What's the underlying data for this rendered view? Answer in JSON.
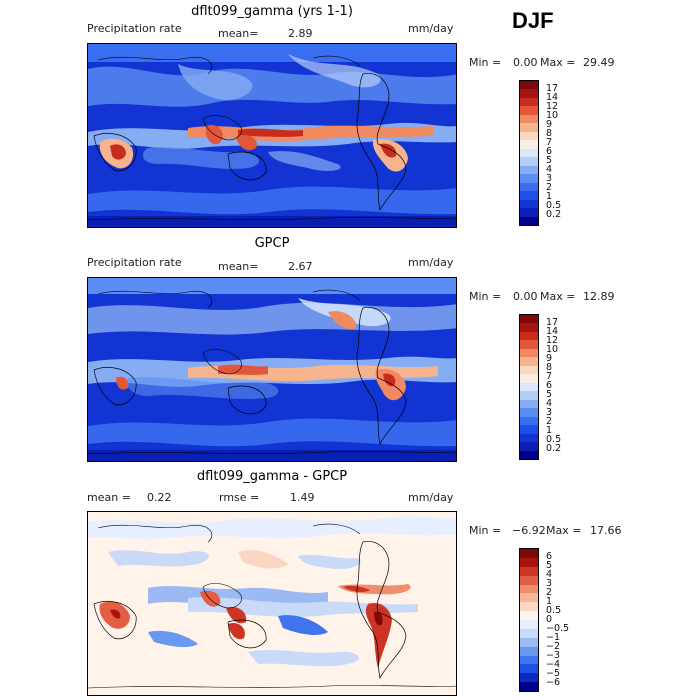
{
  "season": "DJF",
  "colors": {
    "precip_scale": [
      "#00008b",
      "#0a1fb4",
      "#1234d2",
      "#1f4fe6",
      "#3a6ef0",
      "#5b8df2",
      "#86adf3",
      "#b3cdf6",
      "#dbe8fb",
      "#f7eee6",
      "#fad7bf",
      "#f6b48e",
      "#f08a60",
      "#e2573a",
      "#c62d1e",
      "#a51410",
      "#7d0a06"
    ],
    "diff_scale": [
      "#00008b",
      "#0d2bc2",
      "#1e50e2",
      "#3f74ee",
      "#6a97f1",
      "#9bbaf4",
      "#c8daf8",
      "#e6efff",
      "#fff3ea",
      "#fbd7c3",
      "#f6b69b",
      "#ef8e6e",
      "#e35f44",
      "#cc3424",
      "#a7140e",
      "#7d0a06"
    ]
  },
  "panels": [
    {
      "title": "dflt099_gamma (yrs 1-1)",
      "left_label": "Precipitation rate",
      "mean_label": "mean=",
      "mean_value": "2.89",
      "units": "mm/day",
      "min_label": "Min =",
      "min_value": "0.00",
      "max_label": "Max =",
      "max_value": "29.49",
      "colorbar_labels": [
        "17",
        "14",
        "12",
        "10",
        "9",
        "8",
        "7",
        "6",
        "5",
        "4",
        "3",
        "2",
        "1",
        "0.5",
        "0.2"
      ]
    },
    {
      "title": "GPCP",
      "left_label": "Precipitation rate",
      "mean_label": "mean=",
      "mean_value": "2.67",
      "units": "mm/day",
      "min_label": "Min =",
      "min_value": "0.00",
      "max_label": "Max =",
      "max_value": "12.89",
      "colorbar_labels": [
        "17",
        "14",
        "12",
        "10",
        "9",
        "8",
        "7",
        "6",
        "5",
        "4",
        "3",
        "2",
        "1",
        "0.5",
        "0.2"
      ]
    },
    {
      "title": "dflt099_gamma - GPCP",
      "mean_label": "mean =",
      "mean_value": "0.22",
      "rmse_label": "rmse =",
      "rmse_value": "1.49",
      "units": "mm/day",
      "min_label": "Min =",
      "min_value": "−6.92",
      "max_label": "Max =",
      "max_value": "17.66",
      "colorbar_labels": [
        "6",
        "5",
        "4",
        "3",
        "2",
        "1",
        "0.5",
        "0",
        "−0.5",
        "−1",
        "−2",
        "−3",
        "−4",
        "−5",
        "−6"
      ]
    }
  ]
}
